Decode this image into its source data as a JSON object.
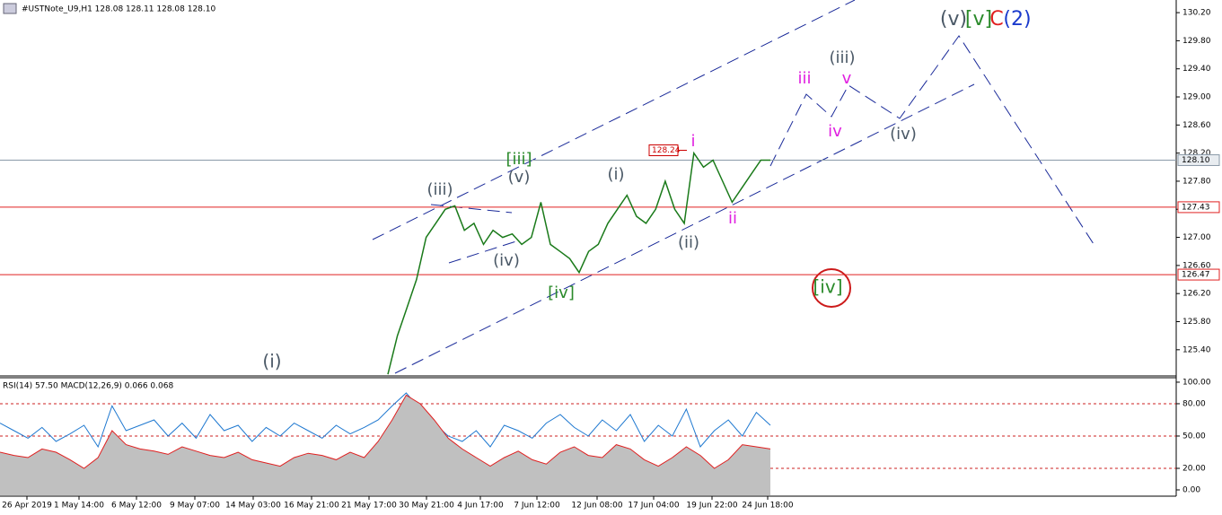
{
  "chart_data": {
    "type": "line",
    "title": "#USTNote_U9,H1  128.08 128.11 128.08 128.10",
    "indicator_title": "RSI(14) 57.50 MACD(12,26,9) 0.066 0.068",
    "ylim": [
      125.04,
      130.38
    ],
    "yticks": [
      {
        "value": 130.2,
        "label": "130.20"
      },
      {
        "value": 129.8,
        "label": "129.80"
      },
      {
        "value": 129.4,
        "label": "129.40"
      },
      {
        "value": 129.0,
        "label": "129.00"
      },
      {
        "value": 128.6,
        "label": "128.60"
      },
      {
        "value": 128.2,
        "label": "128.20"
      },
      {
        "value": 127.8,
        "label": "127.80"
      },
      {
        "value": 127.4,
        "label": "127.40"
      },
      {
        "value": 127.0,
        "label": "127.00"
      },
      {
        "value": 126.6,
        "label": "126.60"
      },
      {
        "value": 126.2,
        "label": "126.20"
      },
      {
        "value": 125.8,
        "label": "125.80"
      },
      {
        "value": 125.4,
        "label": "125.40"
      }
    ],
    "levels": [
      {
        "value": 128.1,
        "label": "128.10",
        "color": "#8a9aa8"
      },
      {
        "value": 127.43,
        "label": "127.43",
        "color": "#e02020"
      },
      {
        "value": 126.47,
        "label": "126.47",
        "color": "#e02020"
      }
    ],
    "price_marker": {
      "value": 128.24,
      "label": "128.24"
    },
    "series": [
      {
        "name": "USTNote_U9",
        "color": "#1a7a1a",
        "values": [
          125.05,
          125.6,
          126.0,
          126.4,
          127.0,
          127.2,
          127.4,
          127.45,
          127.1,
          127.2,
          126.9,
          127.1,
          127.0,
          127.05,
          126.9,
          127.0,
          127.5,
          126.9,
          126.8,
          126.7,
          126.5,
          126.8,
          126.9,
          127.2,
          127.4,
          127.6,
          127.3,
          127.2,
          127.4,
          127.8,
          127.4,
          127.2,
          128.2,
          128.0,
          128.1,
          127.8,
          127.5,
          127.7,
          127.9,
          128.1,
          128.1
        ]
      }
    ],
    "indicator_ylim": [
      -5,
      103.3
    ],
    "indicator_yticks": [
      {
        "value": 100,
        "label": "100.00"
      },
      {
        "value": 80,
        "label": "80.00"
      },
      {
        "value": 50,
        "label": "50.00"
      },
      {
        "value": 20,
        "label": "20.00"
      },
      {
        "value": 0,
        "label": "0.00"
      }
    ],
    "indicator_levels": [
      80,
      50,
      20
    ],
    "indicator_series": [
      {
        "name": "RSI(14)",
        "color": "#1e78d0",
        "values": [
          62,
          55,
          48,
          58,
          45,
          52,
          60,
          40,
          78,
          55,
          60,
          65,
          50,
          62,
          48,
          70,
          55,
          60,
          45,
          58,
          50,
          62,
          55,
          48,
          60,
          52,
          58,
          65,
          78,
          90,
          75,
          62,
          50,
          45,
          55,
          40,
          60,
          55,
          48,
          62,
          70,
          58,
          50,
          65,
          55,
          70,
          45,
          60,
          50,
          75,
          40,
          55,
          65,
          50,
          72,
          60
        ]
      },
      {
        "name": "MACD",
        "color": "#e02020",
        "values": [
          35,
          32,
          30,
          38,
          35,
          28,
          20,
          30,
          55,
          42,
          38,
          36,
          33,
          40,
          36,
          32,
          30,
          35,
          28,
          25,
          22,
          30,
          34,
          32,
          28,
          35,
          30,
          45,
          65,
          88,
          80,
          65,
          48,
          38,
          30,
          22,
          30,
          36,
          28,
          24,
          35,
          40,
          32,
          30,
          42,
          38,
          28,
          22,
          30,
          40,
          32,
          20,
          28,
          42,
          40,
          38
        ]
      }
    ],
    "x_labels": [
      "26 Apr 2019",
      "1 May 14:00",
      "6 May 12:00",
      "9 May 07:00",
      "14 May 03:00",
      "16 May 21:00",
      "21 May 17:00",
      "30 May 21:00",
      "4 Jun 17:00",
      "7 Jun 12:00",
      "12 Jun 08:00",
      "17 Jun 04:00",
      "19 Jun 22:00",
      "24 Jun 18:00"
    ],
    "annotations": [
      {
        "text": "(i)",
        "color": "#4a5866"
      },
      {
        "text": "(iii)",
        "color": "#4a5866"
      },
      {
        "text": "[iii]",
        "color": "#2a8a2a"
      },
      {
        "text": "(v)",
        "color": "#4a5866"
      },
      {
        "text": "(iv)",
        "color": "#4a5866"
      },
      {
        "text": "[iv]",
        "color": "#2a8a2a"
      },
      {
        "text": "(i)",
        "color": "#4a5866"
      },
      {
        "text": "(ii)",
        "color": "#4a5866"
      },
      {
        "text": "i",
        "color": "#e020e0"
      },
      {
        "text": "ii",
        "color": "#e020e0"
      },
      {
        "text": "iii",
        "color": "#e020e0"
      },
      {
        "text": "iv",
        "color": "#e020e0"
      },
      {
        "text": "v",
        "color": "#e020e0"
      },
      {
        "text": "(iii)",
        "color": "#4a5866"
      },
      {
        "text": "(iv)",
        "color": "#4a5866"
      },
      {
        "text": "[iv]",
        "color": "#2a8a2a"
      },
      {
        "text": "(v)",
        "color": "#4a5866"
      },
      {
        "text": "[v]",
        "color": "#2a8a2a"
      },
      {
        "text": "C",
        "color": "#e02020"
      },
      {
        "text": "(2)",
        "color": "#1a3acc"
      }
    ]
  }
}
